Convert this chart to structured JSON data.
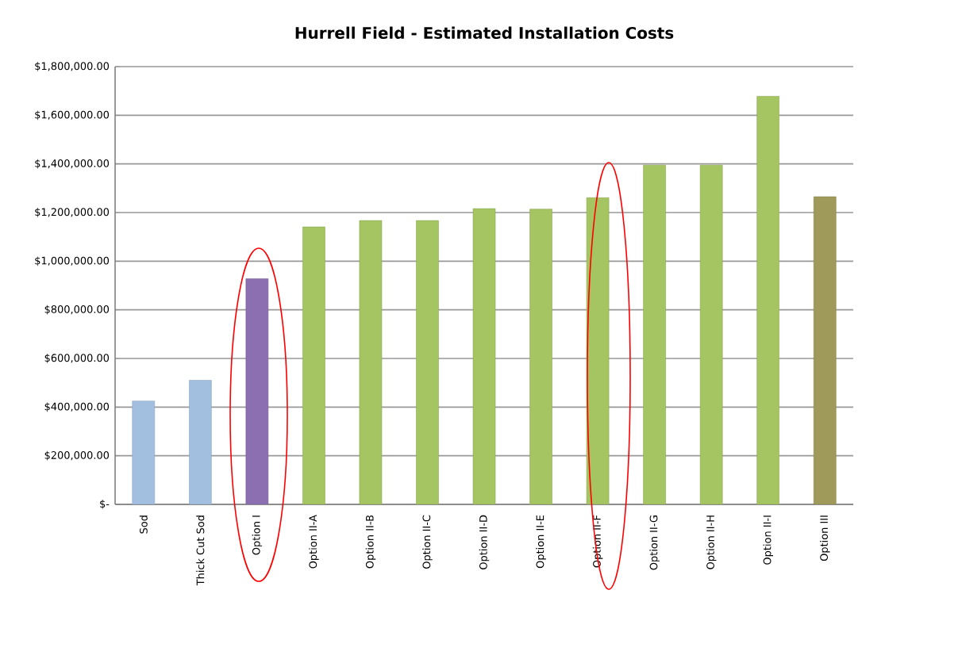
{
  "chart_data": {
    "type": "bar",
    "title": "Hurrell Field - Estimated Installation Costs",
    "categories": [
      "Sod",
      "Thick Cut Sod",
      "Option I",
      "Option II-A",
      "Option II-B",
      "Option II-C",
      "Option II-D",
      "Option II-E",
      "Option II-F",
      "Option II-G",
      "Option II-H",
      "Option II-I",
      "Option III"
    ],
    "values": [
      425000,
      510000,
      928000,
      1141000,
      1167000,
      1167000,
      1216000,
      1214000,
      1261000,
      1395000,
      1395000,
      1678000,
      1265000
    ],
    "colors": [
      "#a3bfe0",
      "#a3bfe0",
      "#8b6fb0",
      "#a5c462",
      "#a5c462",
      "#a5c462",
      "#a5c462",
      "#a5c462",
      "#a5c462",
      "#a5c462",
      "#a5c462",
      "#a5c462",
      "#a09a5a"
    ],
    "ylim": [
      0,
      1800000
    ],
    "yticks": [
      {
        "value": 0,
        "label": "$-"
      },
      {
        "value": 200000,
        "label": "$200,000.00"
      },
      {
        "value": 400000,
        "label": "$400,000.00"
      },
      {
        "value": 600000,
        "label": "$600,000.00"
      },
      {
        "value": 800000,
        "label": "$800,000.00"
      },
      {
        "value": 1000000,
        "label": "$1,000,000.00"
      },
      {
        "value": 1200000,
        "label": "$1,200,000.00"
      },
      {
        "value": 1400000,
        "label": "$1,400,000.00"
      },
      {
        "value": 1600000,
        "label": "$1,600,000.00"
      },
      {
        "value": 1800000,
        "label": "$1,800,000.00"
      }
    ],
    "grid": "y"
  }
}
